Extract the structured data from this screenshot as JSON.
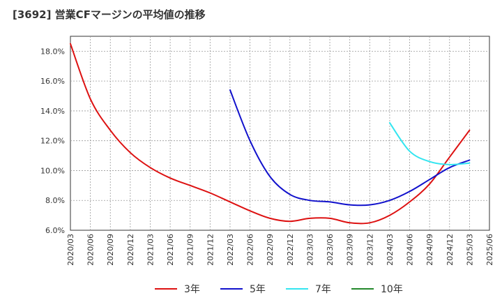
{
  "chart_data": {
    "type": "line",
    "title": "[3692]  営業CFマージンの平均値の推移",
    "xlabel": "",
    "ylabel": "",
    "ylim": [
      6.0,
      19.0
    ],
    "y_ticks": [
      "6.0%",
      "8.0%",
      "10.0%",
      "12.0%",
      "14.0%",
      "16.0%",
      "18.0%"
    ],
    "x": [
      "2020/03",
      "2020/06",
      "2020/09",
      "2020/12",
      "2021/03",
      "2021/06",
      "2021/09",
      "2021/12",
      "2022/03",
      "2022/06",
      "2022/09",
      "2022/12",
      "2023/03",
      "2023/06",
      "2023/09",
      "2023/12",
      "2024/03",
      "2024/06",
      "2024/09",
      "2024/12",
      "2025/03",
      "2025/06"
    ],
    "grid": true,
    "legend_position": "bottom",
    "series": [
      {
        "name": "3年",
        "color": "#dd1111",
        "values": [
          18.5,
          14.8,
          12.7,
          11.2,
          10.2,
          9.5,
          9.0,
          8.5,
          7.9,
          7.3,
          6.8,
          6.6,
          6.8,
          6.8,
          6.5,
          6.5,
          7.0,
          7.9,
          9.1,
          10.9,
          12.7,
          null
        ]
      },
      {
        "name": "5年",
        "color": "#1111cc",
        "values": [
          null,
          null,
          null,
          null,
          null,
          null,
          null,
          null,
          15.4,
          12.0,
          9.6,
          8.4,
          8.0,
          7.9,
          7.7,
          7.7,
          8.0,
          8.6,
          9.4,
          10.2,
          10.7,
          null
        ]
      },
      {
        "name": "7年",
        "color": "#33e5f0",
        "values": [
          null,
          null,
          null,
          null,
          null,
          null,
          null,
          null,
          null,
          null,
          null,
          null,
          null,
          null,
          null,
          null,
          13.2,
          11.3,
          10.6,
          10.4,
          10.5,
          null
        ]
      },
      {
        "name": "10年",
        "color": "#22882b",
        "values": [
          null,
          null,
          null,
          null,
          null,
          null,
          null,
          null,
          null,
          null,
          null,
          null,
          null,
          null,
          null,
          null,
          null,
          null,
          null,
          null,
          null,
          null
        ]
      }
    ]
  }
}
